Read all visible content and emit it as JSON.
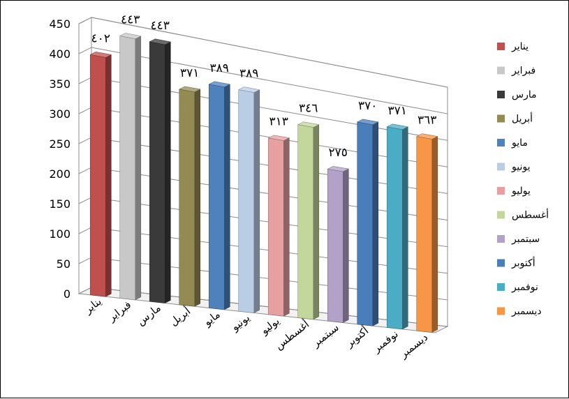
{
  "chart_data": {
    "type": "bar",
    "style": "3d-column",
    "title": "",
    "xlabel": "",
    "ylabel": "",
    "ylim": [
      0,
      450
    ],
    "y_ticks": [
      "0",
      "50",
      "100",
      "150",
      "200",
      "250",
      "300",
      "350",
      "400",
      "450"
    ],
    "grid": true,
    "legend_position": "right",
    "categories": [
      "يناير",
      "فبراير",
      "مارس",
      "أبريل",
      "مايو",
      "يونيو",
      "يوليو",
      "أغسطس",
      "سبتمبر",
      "أكتوبر",
      "نوفمبر",
      "ديسمبر"
    ],
    "values": [
      402,
      443,
      443,
      371,
      389,
      389,
      313,
      346,
      275,
      370,
      371,
      363
    ],
    "data_labels": [
      "٤٠٢",
      "٤٤٣",
      "٤٤٣",
      "٣٧١",
      "٣٨٩",
      "٣٨٩",
      "٣١٣",
      "٣٤٦",
      "٢٧٥",
      "٣٧٠",
      "٣٧١",
      "٣٦٣"
    ],
    "colors": [
      "#c0504d",
      "#c8c8c8",
      "#3a3a3a",
      "#948a54",
      "#4f81bd",
      "#b9cde5",
      "#e6a0a0",
      "#c3d69b",
      "#b3a2c7",
      "#4a7ebb",
      "#4bacc6",
      "#f79646"
    ]
  }
}
